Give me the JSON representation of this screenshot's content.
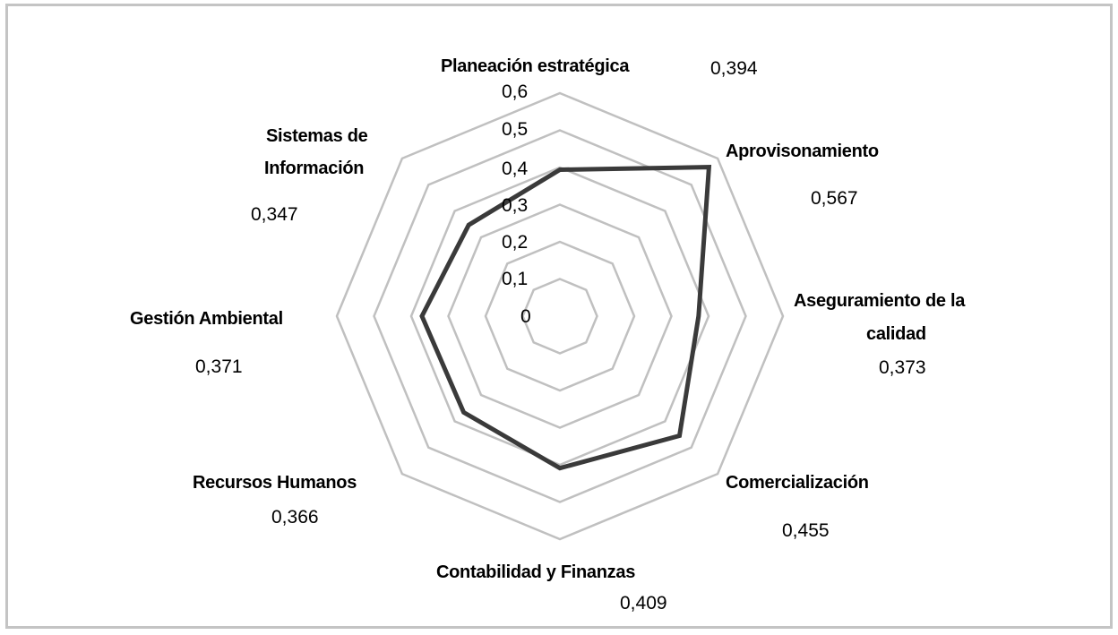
{
  "chart_data": {
    "type": "radar",
    "title": "",
    "categories": [
      "Planeación estratégica",
      "Aprovisonamiento",
      "Aseguramiento de la calidad",
      "Comercialización",
      "Contabilidad y Finanzas",
      "Recursos Humanos",
      "Gestión Ambiental",
      "Sistemas de Información"
    ],
    "values": [
      0.394,
      0.567,
      0.373,
      0.455,
      0.409,
      0.366,
      0.371,
      0.347
    ],
    "value_labels": [
      "0,394",
      "0,567",
      "0,373",
      "0,455",
      "0,409",
      "0,366",
      "0,371",
      "0,347"
    ],
    "radial_ticks": [
      "0",
      "0,1",
      "0,2",
      "0,3",
      "0,4",
      "0,5",
      "0,6"
    ],
    "rlim": [
      0,
      0.6
    ],
    "grid": true,
    "legend": "none",
    "colors": {
      "series": "#3a3a3a",
      "grid": "#c0c0c0",
      "frame": "#c4c4c4"
    }
  },
  "labels": {
    "planeacion": "Planeación estratégica",
    "aprovisonamiento": "Aprovisonamiento",
    "aseguramiento_1": "Aseguramiento de la",
    "aseguramiento_2": "calidad",
    "comercializacion": "Comercialización",
    "contabilidad": "Contabilidad y Finanzas",
    "recursos": "Recursos Humanos",
    "gestion": "Gestión Ambiental",
    "sistemas_1": "Sistemas de",
    "sistemas_2": "Información"
  }
}
